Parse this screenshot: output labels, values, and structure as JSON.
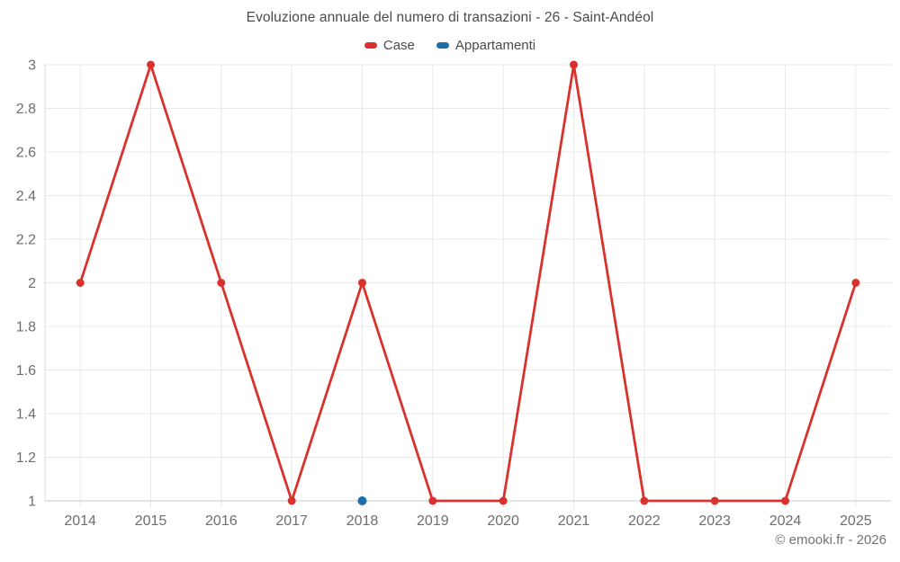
{
  "page": {
    "copyright": "© emooki.fr - 2026"
  },
  "chart_data": {
    "type": "line",
    "title": "Evoluzione annuale del numero di transazioni - 26 - Saint-Andéol",
    "categories": [
      "2014",
      "2015",
      "2016",
      "2017",
      "2018",
      "2019",
      "2020",
      "2021",
      "2022",
      "2023",
      "2024",
      "2025"
    ],
    "series": [
      {
        "name": "Case",
        "color": "#d9322d",
        "marker_radius": 4.5,
        "values": [
          2,
          3,
          2,
          1,
          2,
          1,
          1,
          3,
          1,
          1,
          1,
          2
        ]
      },
      {
        "name": "Appartamenti",
        "color": "#1c6fa8",
        "marker_radius": 5,
        "values": [
          null,
          null,
          null,
          null,
          1,
          null,
          null,
          null,
          null,
          null,
          null,
          null
        ]
      }
    ],
    "xlabel": "",
    "ylabel": "",
    "ylim": [
      1,
      3
    ],
    "y_tick_step": 0.2,
    "y_tick_labels": [
      "1",
      "1.2",
      "1.4",
      "1.6",
      "1.8",
      "2",
      "2.2",
      "2.4",
      "2.6",
      "2.8",
      "3"
    ],
    "grid": true,
    "legend_position": "top",
    "colors": {
      "grid_line": "#e9e9e9",
      "bottom_axis": "#c9c9c9",
      "left_axis": "#d8d8d8",
      "tick_label": "#6e6e6e",
      "title_text": "#4a4a4a"
    }
  }
}
